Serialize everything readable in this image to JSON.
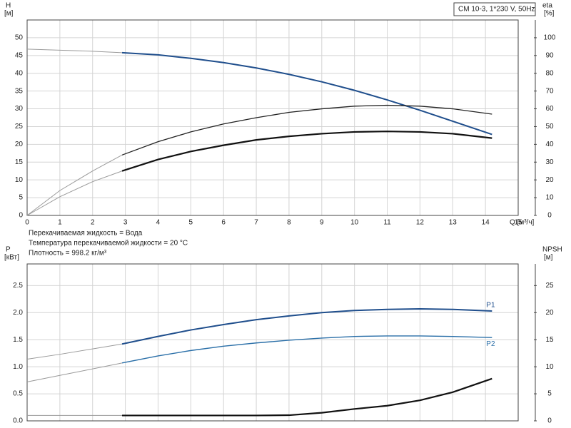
{
  "chart_data": [
    {
      "type": "line",
      "title": "CM 10-3, 1*230 V, 50Hz",
      "y_label": "H",
      "y_unit": "[м]",
      "y2_label": "eta",
      "y2_unit": "[%]",
      "x_label": "Q [м³/ч]",
      "notes": [
        "Перекачиваемая жидкость = Вода",
        "Температура перекачиваемой жидкости = 20 °C",
        "Плотность = 998.2 кг/м³"
      ],
      "x": [
        0,
        1,
        2,
        2.9,
        4,
        5,
        6,
        7,
        8,
        9,
        10,
        11,
        12,
        13,
        14.2
      ],
      "xlim": [
        0,
        15
      ],
      "xticks": [
        0,
        1,
        2,
        3,
        4,
        5,
        6,
        7,
        8,
        9,
        10,
        11,
        12,
        13,
        14,
        15
      ],
      "xtick_labels": true,
      "ylim": [
        0,
        55
      ],
      "yticks": [
        0,
        5,
        10,
        15,
        20,
        25,
        30,
        35,
        40,
        45,
        50
      ],
      "y2lim": [
        0,
        110
      ],
      "y2ticks": [
        0,
        10,
        20,
        30,
        40,
        50,
        60,
        70,
        80,
        90,
        100
      ],
      "grid": true,
      "series": [
        {
          "color": "#9a9a9a",
          "width": 1,
          "values": [
            46.8,
            46.5,
            46.2,
            45.8,
            null,
            null,
            null,
            null,
            null,
            null,
            null,
            null,
            null,
            null,
            null
          ]
        },
        {
          "color": "#1f4e8c",
          "width": 2,
          "values": [
            null,
            null,
            null,
            45.8,
            45.2,
            44.2,
            43,
            41.5,
            39.7,
            37.6,
            35.2,
            32.5,
            29.6,
            26.5,
            22.8
          ]
        },
        {
          "color": "#9a9a9a",
          "width": 1,
          "axis": "y2",
          "values": [
            0,
            14,
            25,
            34,
            null,
            null,
            null,
            null,
            null,
            null,
            null,
            null,
            null,
            null,
            null
          ]
        },
        {
          "color": "#222222",
          "width": 1.3,
          "axis": "y2",
          "values": [
            null,
            null,
            null,
            34,
            41.5,
            47,
            51.5,
            55,
            58,
            60,
            61.5,
            62,
            61.5,
            60,
            57
          ]
        },
        {
          "color": "#9a9a9a",
          "width": 1,
          "axis": "y2",
          "values": [
            0,
            10.5,
            19,
            25,
            null,
            null,
            null,
            null,
            null,
            null,
            null,
            null,
            null,
            null,
            null
          ]
        },
        {
          "color": "#111111",
          "width": 2.2,
          "axis": "y2",
          "values": [
            null,
            null,
            null,
            25,
            31.5,
            36,
            39.5,
            42.5,
            44.5,
            46,
            47,
            47.3,
            47,
            46,
            43.5
          ]
        }
      ]
    },
    {
      "type": "line",
      "y_label": "P",
      "y_unit": "[кВт]",
      "y2_label": "NPSH",
      "y2_unit": "[м]",
      "x": [
        0,
        1,
        2,
        2.9,
        4,
        5,
        6,
        7,
        8,
        9,
        10,
        11,
        12,
        13,
        14.2
      ],
      "xlim": [
        0,
        15
      ],
      "xticks": [
        0,
        1,
        2,
        3,
        4,
        5,
        6,
        7,
        8,
        9,
        10,
        11,
        12,
        13,
        14,
        15
      ],
      "xtick_labels": false,
      "ylim": [
        0,
        2.9
      ],
      "yticks": [
        {
          "value": 0,
          "label": "0.0"
        },
        0.5,
        {
          "value": 1,
          "label": "1.0"
        },
        1.5,
        {
          "value": 2,
          "label": "2.0"
        },
        2.5
      ],
      "y2lim": [
        0,
        29
      ],
      "y2ticks": [
        0,
        5,
        10,
        15,
        20,
        25
      ],
      "grid": true,
      "series": [
        {
          "color": "#9a9a9a",
          "width": 1,
          "values": [
            1.14,
            1.23,
            1.33,
            1.42,
            null,
            null,
            null,
            null,
            null,
            null,
            null,
            null,
            null,
            null,
            null
          ]
        },
        {
          "name": "P1",
          "label_position": "above",
          "color": "#1f4e8c",
          "width": 2,
          "values": [
            null,
            null,
            null,
            1.42,
            1.56,
            1.68,
            1.78,
            1.87,
            1.94,
            2.0,
            2.04,
            2.06,
            2.07,
            2.06,
            2.03
          ]
        },
        {
          "color": "#9a9a9a",
          "width": 1,
          "values": [
            0.72,
            0.84,
            0.96,
            1.07,
            null,
            null,
            null,
            null,
            null,
            null,
            null,
            null,
            null,
            null,
            null
          ]
        },
        {
          "name": "P2",
          "label_position": "below",
          "color": "#2a6fa8",
          "width": 1.4,
          "values": [
            null,
            null,
            null,
            1.07,
            1.2,
            1.3,
            1.38,
            1.44,
            1.49,
            1.53,
            1.56,
            1.57,
            1.57,
            1.56,
            1.54
          ]
        },
        {
          "color": "#9a9a9a",
          "width": 1,
          "axis": "y2",
          "values": [
            1.0,
            1.0,
            1.0,
            1.0,
            null,
            null,
            null,
            null,
            null,
            null,
            null,
            null,
            null,
            null,
            null
          ]
        },
        {
          "color": "#111111",
          "width": 2.2,
          "axis": "y2",
          "values": [
            null,
            null,
            null,
            1.0,
            1.0,
            1.0,
            1.0,
            1.0,
            1.05,
            1.5,
            2.2,
            2.8,
            3.8,
            5.3,
            7.8
          ]
        }
      ]
    }
  ]
}
